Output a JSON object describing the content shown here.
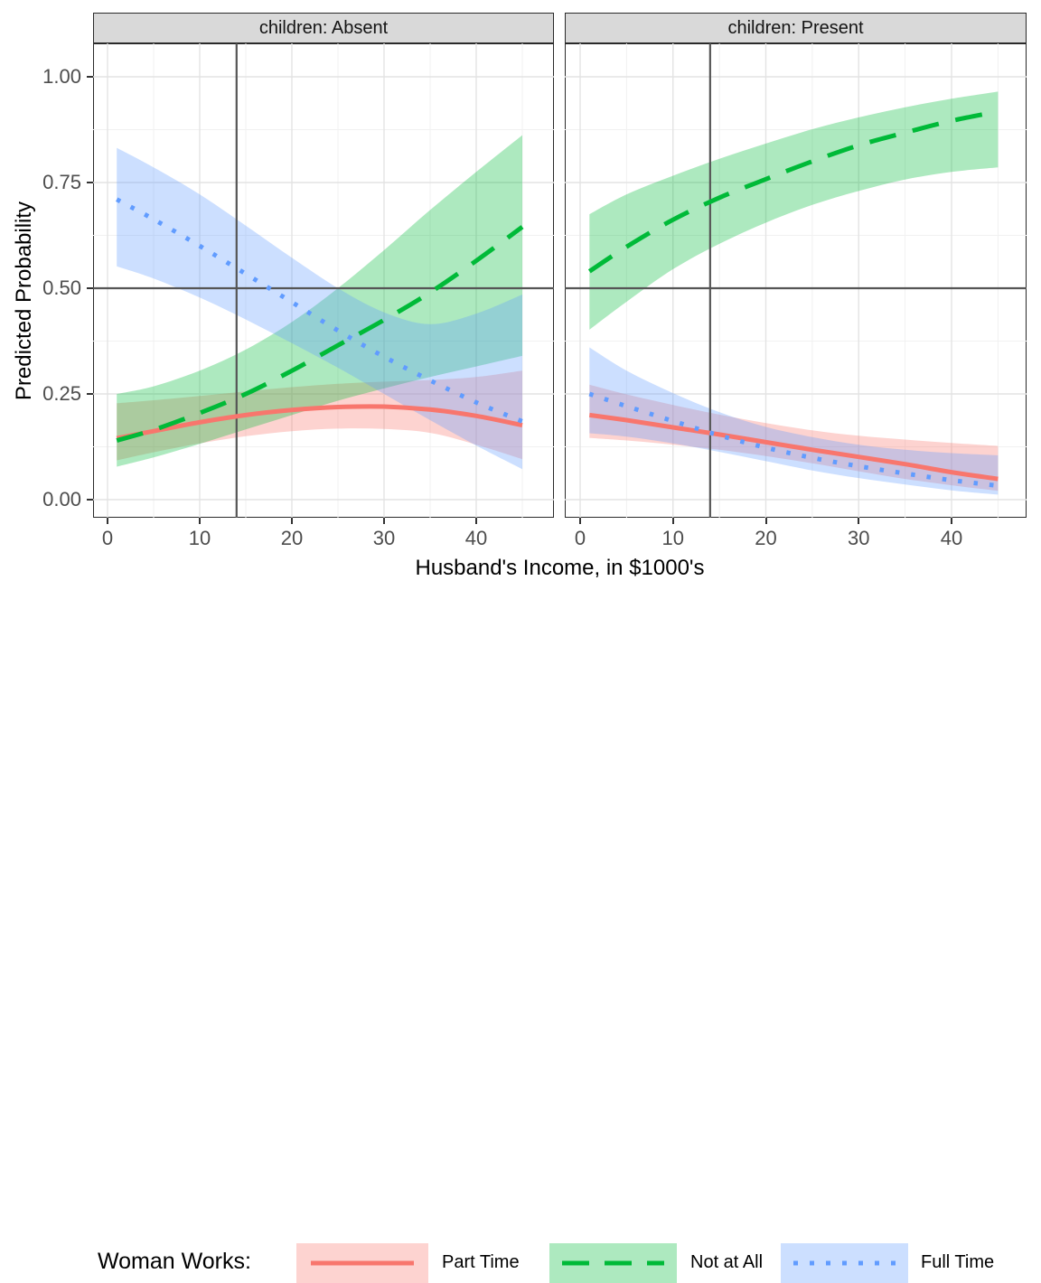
{
  "legend": {
    "title": "Woman Works:",
    "position": "bottom",
    "entries": [
      {
        "label": "Part Time",
        "line_color": "#F8766D",
        "fill": "rgba(248,118,109,0.32)",
        "linetype": "solid",
        "sample_dash": ""
      },
      {
        "label": "Not at All",
        "line_color": "#00BA38",
        "fill": "rgba(0,186,56,0.32)",
        "linetype": "dashed",
        "sample_dash": "30 17"
      },
      {
        "label": "Full Time",
        "line_color": "#619CFF",
        "fill": "rgba(97,156,255,0.32)",
        "linetype": "dotted",
        "sample_dash": "5 13"
      }
    ]
  },
  "chart_data": {
    "type": "line",
    "title": "",
    "xlabel": "Husband's Income, in $1000's",
    "ylabel": "Predicted Probability",
    "facet_variable": "children",
    "grid": "major and minor, light gray on white",
    "xlim": [
      -1.5,
      48.5
    ],
    "ylim": [
      -0.045,
      1.08
    ],
    "x_ticks": [
      0,
      10,
      20,
      30,
      40
    ],
    "x_minor_gridlines": [
      5,
      15,
      25,
      35,
      45
    ],
    "y_ticks": [
      {
        "value": 1.0,
        "label": "1.00"
      },
      {
        "value": 0.75,
        "label": "0.75"
      },
      {
        "value": 0.5,
        "label": "0.50"
      },
      {
        "value": 0.25,
        "label": "0.25"
      },
      {
        "value": 0.0,
        "label": "0.00"
      }
    ],
    "y_minor_gridlines": [
      0.125,
      0.375,
      0.625,
      0.875
    ],
    "reference_lines": {
      "horizontal_y": 0.5,
      "vertical_x": 14,
      "color": "#555555"
    },
    "x": [
      1,
      5,
      10,
      15,
      20,
      25,
      30,
      35,
      40,
      45
    ],
    "facets": [
      {
        "label": "children: Absent",
        "series": [
          {
            "name": "Part Time",
            "color": "#F8766D",
            "ribbon_fill": "rgba(248,118,109,0.32)",
            "linetype": "solid",
            "y": [
              0.145,
              0.162,
              0.183,
              0.2,
              0.212,
              0.219,
              0.22,
              0.213,
              0.198,
              0.176
            ],
            "lower": [
              0.093,
              0.112,
              0.133,
              0.15,
              0.162,
              0.168,
              0.167,
              0.158,
              0.13,
              0.096
            ],
            "upper": [
              0.228,
              0.235,
              0.245,
              0.256,
              0.266,
              0.274,
              0.279,
              0.283,
              0.29,
              0.305
            ]
          },
          {
            "name": "Not at All",
            "color": "#00BA38",
            "ribbon_fill": "rgba(0,186,56,0.32)",
            "linetype": "dashed",
            "y": [
              0.14,
              0.165,
              0.205,
              0.25,
              0.305,
              0.365,
              0.425,
              0.49,
              0.565,
              0.645
            ],
            "lower": [
              0.078,
              0.1,
              0.132,
              0.166,
              0.2,
              0.234,
              0.263,
              0.29,
              0.315,
              0.34
            ],
            "upper": [
              0.25,
              0.268,
              0.305,
              0.355,
              0.42,
              0.5,
              0.59,
              0.685,
              0.775,
              0.862
            ]
          },
          {
            "name": "Full Time",
            "color": "#619CFF",
            "ribbon_fill": "rgba(97,156,255,0.32)",
            "linetype": "dotted",
            "y": [
              0.71,
              0.663,
              0.6,
              0.534,
              0.467,
              0.4,
              0.338,
              0.282,
              0.23,
              0.185
            ],
            "lower": [
              0.552,
              0.523,
              0.478,
              0.426,
              0.37,
              0.312,
              0.25,
              0.188,
              0.128,
              0.072
            ],
            "upper": [
              0.832,
              0.786,
              0.722,
              0.648,
              0.572,
              0.5,
              0.443,
              0.415,
              0.44,
              0.485
            ]
          }
        ]
      },
      {
        "label": "children: Present",
        "series": [
          {
            "name": "Part Time",
            "color": "#F8766D",
            "ribbon_fill": "rgba(248,118,109,0.32)",
            "linetype": "solid",
            "y": [
              0.2,
              0.188,
              0.171,
              0.154,
              0.136,
              0.118,
              0.101,
              0.084,
              0.065,
              0.049
            ],
            "lower": [
              0.146,
              0.14,
              0.13,
              0.118,
              0.103,
              0.086,
              0.067,
              0.049,
              0.034,
              0.021
            ],
            "upper": [
              0.272,
              0.249,
              0.224,
              0.201,
              0.181,
              0.164,
              0.151,
              0.142,
              0.134,
              0.127
            ]
          },
          {
            "name": "Not at All",
            "color": "#00BA38",
            "ribbon_fill": "rgba(0,186,56,0.32)",
            "linetype": "dashed",
            "y": [
              0.54,
              0.598,
              0.662,
              0.714,
              0.758,
              0.8,
              0.838,
              0.868,
              0.896,
              0.918
            ],
            "lower": [
              0.402,
              0.468,
              0.545,
              0.605,
              0.655,
              0.697,
              0.73,
              0.757,
              0.775,
              0.786
            ],
            "upper": [
              0.675,
              0.722,
              0.766,
              0.806,
              0.842,
              0.876,
              0.904,
              0.928,
              0.948,
              0.965
            ]
          },
          {
            "name": "Full Time",
            "color": "#619CFF",
            "ribbon_fill": "rgba(97,156,255,0.32)",
            "linetype": "dotted",
            "y": [
              0.25,
              0.221,
              0.186,
              0.152,
              0.123,
              0.099,
              0.079,
              0.062,
              0.046,
              0.033
            ],
            "lower": [
              0.157,
              0.149,
              0.133,
              0.113,
              0.091,
              0.069,
              0.051,
              0.036,
              0.022,
              0.012
            ],
            "upper": [
              0.36,
              0.305,
              0.252,
              0.207,
              0.172,
              0.148,
              0.13,
              0.118,
              0.11,
              0.105
            ]
          }
        ]
      }
    ]
  }
}
